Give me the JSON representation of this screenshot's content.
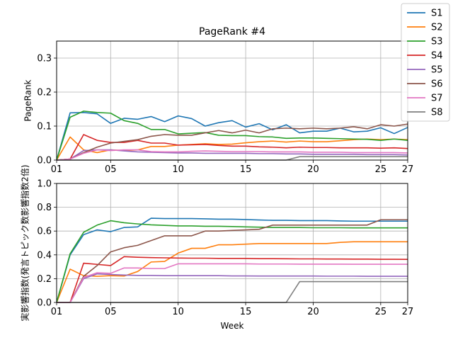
{
  "chart_data": [
    {
      "type": "line",
      "title": "PageRank #4",
      "xlabel": "",
      "ylabel": "PageRank",
      "xlim": [
        1,
        27
      ],
      "ylim": [
        0,
        0.35
      ],
      "x": [
        1,
        2,
        3,
        4,
        5,
        6,
        7,
        8,
        9,
        10,
        11,
        12,
        13,
        14,
        15,
        16,
        17,
        18,
        19,
        20,
        21,
        22,
        23,
        24,
        25,
        26,
        27
      ],
      "xticks": [
        1,
        5,
        10,
        15,
        20,
        25,
        27
      ],
      "xtick_labels": [
        "01",
        "05",
        "10",
        "15",
        "20",
        "25",
        "27"
      ],
      "yticks": [
        0,
        0.1,
        0.2,
        0.3
      ],
      "ytick_labels": [
        "0.0",
        "0.1",
        "0.2",
        "0.3"
      ],
      "grid": true,
      "series": [
        {
          "name": "S1",
          "color": "#1f77b4",
          "values": [
            0,
            0.139,
            0.14,
            0.136,
            0.108,
            0.123,
            0.12,
            0.128,
            0.113,
            0.13,
            0.122,
            0.1,
            0.11,
            0.116,
            0.097,
            0.107,
            0.089,
            0.104,
            0.08,
            0.085,
            0.085,
            0.094,
            0.083,
            0.085,
            0.095,
            0.078,
            0.096
          ]
        },
        {
          "name": "S2",
          "color": "#ff7f0e",
          "values": [
            0,
            0.068,
            0.03,
            0.022,
            0.03,
            0.028,
            0.03,
            0.04,
            0.04,
            0.044,
            0.046,
            0.048,
            0.046,
            0.047,
            0.051,
            0.054,
            0.056,
            0.053,
            0.056,
            0.054,
            0.054,
            0.057,
            0.06,
            0.062,
            0.06,
            0.062,
            0.06
          ]
        },
        {
          "name": "S3",
          "color": "#2ca02c",
          "values": [
            0,
            0.126,
            0.144,
            0.14,
            0.138,
            0.116,
            0.108,
            0.09,
            0.09,
            0.077,
            0.079,
            0.081,
            0.073,
            0.072,
            0.072,
            0.069,
            0.068,
            0.064,
            0.065,
            0.065,
            0.064,
            0.063,
            0.062,
            0.061,
            0.058,
            0.062,
            0.058
          ]
        },
        {
          "name": "S4",
          "color": "#d62728",
          "values": [
            0,
            0.003,
            0.075,
            0.058,
            0.052,
            0.052,
            0.058,
            0.05,
            0.05,
            0.044,
            0.045,
            0.046,
            0.043,
            0.041,
            0.041,
            0.039,
            0.038,
            0.036,
            0.038,
            0.037,
            0.037,
            0.036,
            0.036,
            0.036,
            0.035,
            0.036,
            0.034
          ]
        },
        {
          "name": "S5",
          "color": "#9467bd",
          "values": [
            0,
            0.003,
            0.028,
            0.03,
            0.03,
            0.027,
            0.024,
            0.023,
            0.022,
            0.021,
            0.021,
            0.02,
            0.02,
            0.02,
            0.02,
            0.019,
            0.019,
            0.018,
            0.018,
            0.017,
            0.017,
            0.017,
            0.017,
            0.016,
            0.016,
            0.016,
            0.015
          ]
        },
        {
          "name": "S6",
          "color": "#8c564b",
          "values": [
            0,
            0.003,
            0.022,
            0.038,
            0.05,
            0.055,
            0.06,
            0.07,
            0.075,
            0.073,
            0.073,
            0.08,
            0.087,
            0.08,
            0.088,
            0.08,
            0.092,
            0.094,
            0.092,
            0.094,
            0.092,
            0.094,
            0.098,
            0.092,
            0.104,
            0.1,
            0.106
          ]
        },
        {
          "name": "S7",
          "color": "#e377c2",
          "values": [
            0,
            0.003,
            0.02,
            0.03,
            0.028,
            0.03,
            0.03,
            0.025,
            0.024,
            0.024,
            0.026,
            0.027,
            0.026,
            0.025,
            0.025,
            0.025,
            0.024,
            0.024,
            0.024,
            0.023,
            0.023,
            0.023,
            0.022,
            0.022,
            0.022,
            0.022,
            0.021
          ]
        },
        {
          "name": "S8",
          "color": "#7f7f7f",
          "values": [
            0,
            0,
            0,
            0,
            0,
            0,
            0,
            0,
            0,
            0,
            0,
            0,
            0,
            0,
            0,
            0,
            0,
            0,
            0.01,
            0.01,
            0.01,
            0.01,
            0.01,
            0.01,
            0.01,
            0.01,
            0.01
          ]
        }
      ]
    },
    {
      "type": "line",
      "title": "",
      "xlabel": "Week",
      "ylabel": "実影響指数(発言トピック数影響指数2倍)",
      "xlim": [
        1,
        27
      ],
      "ylim": [
        0,
        1.0
      ],
      "x": [
        1,
        2,
        3,
        4,
        5,
        6,
        7,
        8,
        9,
        10,
        11,
        12,
        13,
        14,
        15,
        16,
        17,
        18,
        19,
        20,
        21,
        22,
        23,
        24,
        25,
        26,
        27
      ],
      "xticks": [
        1,
        5,
        10,
        15,
        20,
        25,
        27
      ],
      "xtick_labels": [
        "01",
        "05",
        "10",
        "15",
        "20",
        "25",
        "27"
      ],
      "yticks": [
        0,
        0.2,
        0.4,
        0.6,
        0.8,
        1.0
      ],
      "ytick_labels": [
        "0.0",
        "0.2",
        "0.4",
        "0.6",
        "0.8",
        "1.0"
      ],
      "grid": true,
      "series": [
        {
          "name": "S1",
          "color": "#1f77b4",
          "values": [
            0,
            0.4,
            0.57,
            0.61,
            0.595,
            0.63,
            0.635,
            0.708,
            0.705,
            0.705,
            0.705,
            0.703,
            0.7,
            0.7,
            0.697,
            0.693,
            0.69,
            0.69,
            0.688,
            0.688,
            0.688,
            0.685,
            0.683,
            0.683,
            0.683,
            0.683,
            0.683
          ]
        },
        {
          "name": "S2",
          "color": "#ff7f0e",
          "values": [
            0,
            0.28,
            0.225,
            0.22,
            0.225,
            0.222,
            0.26,
            0.34,
            0.345,
            0.415,
            0.455,
            0.455,
            0.485,
            0.485,
            0.49,
            0.495,
            0.495,
            0.495,
            0.495,
            0.495,
            0.495,
            0.505,
            0.51,
            0.51,
            0.51,
            0.51,
            0.51
          ]
        },
        {
          "name": "S3",
          "color": "#2ca02c",
          "values": [
            0,
            0.41,
            0.59,
            0.65,
            0.687,
            0.67,
            0.66,
            0.652,
            0.648,
            0.643,
            0.643,
            0.64,
            0.64,
            0.638,
            0.635,
            0.633,
            0.63,
            0.63,
            0.63,
            0.628,
            0.628,
            0.628,
            0.627,
            0.627,
            0.627,
            0.627,
            0.627
          ]
        },
        {
          "name": "S4",
          "color": "#d62728",
          "values": [
            0,
            0,
            0.33,
            0.32,
            0.31,
            0.385,
            0.38,
            0.377,
            0.375,
            0.373,
            0.372,
            0.372,
            0.37,
            0.37,
            0.37,
            0.368,
            0.368,
            0.367,
            0.366,
            0.366,
            0.365,
            0.365,
            0.364,
            0.364,
            0.363,
            0.363,
            0.362
          ]
        },
        {
          "name": "S5",
          "color": "#9467bd",
          "values": [
            0,
            0,
            0.2,
            0.24,
            0.235,
            0.23,
            0.227,
            0.227,
            0.225,
            0.225,
            0.225,
            0.225,
            0.225,
            0.223,
            0.223,
            0.222,
            0.222,
            0.222,
            0.222,
            0.222,
            0.221,
            0.221,
            0.221,
            0.22,
            0.22,
            0.22,
            0.22
          ]
        },
        {
          "name": "S6",
          "color": "#8c564b",
          "values": [
            0,
            0,
            0.22,
            0.31,
            0.425,
            0.46,
            0.48,
            0.52,
            0.56,
            0.56,
            0.56,
            0.6,
            0.6,
            0.605,
            0.61,
            0.615,
            0.65,
            0.65,
            0.65,
            0.65,
            0.65,
            0.65,
            0.65,
            0.65,
            0.695,
            0.695,
            0.695
          ]
        },
        {
          "name": "S7",
          "color": "#e377c2",
          "values": [
            0,
            0,
            0.21,
            0.25,
            0.245,
            0.29,
            0.29,
            0.285,
            0.285,
            0.325,
            0.325,
            0.325,
            0.325,
            0.325,
            0.325,
            0.323,
            0.323,
            0.323,
            0.322,
            0.322,
            0.322,
            0.322,
            0.321,
            0.321,
            0.321,
            0.321,
            0.321
          ]
        },
        {
          "name": "S8",
          "color": "#7f7f7f",
          "values": [
            0,
            0,
            0,
            0,
            0,
            0,
            0,
            0,
            0,
            0,
            0,
            0,
            0,
            0,
            0,
            0,
            0,
            0,
            0.175,
            0.175,
            0.175,
            0.175,
            0.175,
            0.175,
            0.175,
            0.175,
            0.175
          ]
        }
      ]
    }
  ],
  "legend": {
    "placement": "top-right",
    "entries": [
      {
        "name": "S1",
        "color": "#1f77b4"
      },
      {
        "name": "S2",
        "color": "#ff7f0e"
      },
      {
        "name": "S3",
        "color": "#2ca02c"
      },
      {
        "name": "S4",
        "color": "#d62728"
      },
      {
        "name": "S5",
        "color": "#9467bd"
      },
      {
        "name": "S6",
        "color": "#8c564b"
      },
      {
        "name": "S7",
        "color": "#e377c2"
      },
      {
        "name": "S8",
        "color": "#7f7f7f"
      }
    ]
  }
}
